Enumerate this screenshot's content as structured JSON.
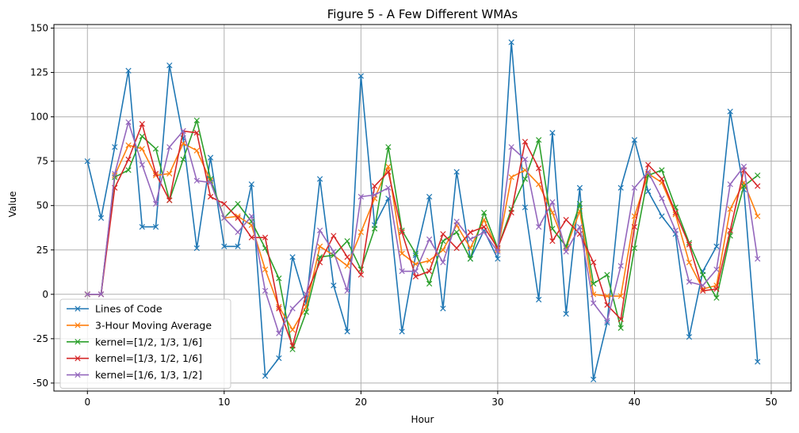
{
  "chart_data": {
    "type": "line",
    "title": "Figure 5 - A Few Different WMAs",
    "xlabel": "Hour",
    "ylabel": "Value",
    "xlim": [
      -2.45,
      51.45
    ],
    "ylim": [
      -54.5,
      152
    ],
    "xticks": [
      0,
      10,
      20,
      30,
      40,
      50
    ],
    "yticks": [
      -50,
      -25,
      0,
      25,
      50,
      75,
      100,
      125,
      150
    ],
    "grid": true,
    "legend_position": "lower left",
    "marker": "x",
    "x": [
      0,
      1,
      2,
      3,
      4,
      5,
      6,
      7,
      8,
      9,
      10,
      11,
      12,
      13,
      14,
      15,
      16,
      17,
      18,
      19,
      20,
      21,
      22,
      23,
      24,
      25,
      26,
      27,
      28,
      29,
      30,
      31,
      32,
      33,
      34,
      35,
      36,
      37,
      38,
      39,
      40,
      41,
      42,
      43,
      44,
      45,
      46,
      47,
      48,
      49
    ],
    "series": [
      {
        "name": "Lines of Code",
        "color": "#1f77b4",
        "values": [
          75,
          43,
          83,
          126,
          38,
          38,
          129,
          88,
          26,
          77,
          27,
          27,
          62,
          -46,
          -36,
          21,
          -5,
          65,
          5,
          -21,
          123,
          39,
          54,
          -21,
          22,
          55,
          -8,
          69,
          20,
          36,
          20,
          142,
          49,
          -3,
          91,
          -11,
          60,
          -48,
          -16,
          60,
          87,
          58,
          44,
          34,
          -24,
          13,
          27,
          103,
          59,
          -38
        ]
      },
      {
        "name": "3-Hour Moving Average",
        "color": "#ff7f0e",
        "values": [
          0,
          0,
          67,
          84,
          82,
          67,
          68,
          85,
          81,
          64,
          43,
          44,
          39,
          14,
          -7,
          -20,
          -7,
          27,
          22,
          16,
          35,
          54,
          72,
          23,
          17,
          19,
          25,
          39,
          26,
          42,
          25,
          66,
          70,
          62,
          46,
          26,
          47,
          0,
          -1,
          -1,
          44,
          68,
          63,
          45,
          18,
          3,
          5,
          48,
          63,
          44
        ]
      },
      {
        "name": "kernel=[1/2, 1/3, 1/6]",
        "color": "#2ca02c",
        "values": [
          0,
          0,
          66,
          70,
          89,
          82,
          53,
          76,
          98,
          65,
          43,
          51,
          41,
          26,
          9,
          -31,
          -10,
          21,
          22,
          30,
          14,
          37,
          83,
          36,
          23,
          6,
          30,
          35,
          20,
          46,
          26,
          48,
          65,
          87,
          37,
          27,
          51,
          6,
          11,
          -19,
          26,
          67,
          70,
          49,
          29,
          11,
          -2,
          33,
          61,
          67
        ]
      },
      {
        "name": "kernel=[1/3, 1/2, 1/6]",
        "color": "#d62728",
        "values": [
          0,
          0,
          60,
          76,
          96,
          68,
          53,
          92,
          91,
          55,
          51,
          43,
          32,
          32,
          -8,
          -29,
          0,
          18,
          33,
          21,
          11,
          61,
          69,
          35,
          10,
          13,
          34,
          26,
          35,
          38,
          26,
          46,
          86,
          71,
          30,
          42,
          34,
          18,
          -6,
          -14,
          38,
          73,
          65,
          46,
          28,
          2,
          3,
          36,
          70,
          61
        ]
      },
      {
        "name": "kernel=[1/6, 1/3, 1/2]",
        "color": "#9467bd",
        "values": [
          0,
          0,
          68,
          97,
          73,
          51,
          83,
          92,
          64,
          63,
          43,
          35,
          44,
          2,
          -22,
          -8,
          0,
          36,
          24,
          2,
          55,
          56,
          60,
          13,
          13,
          31,
          18,
          41,
          31,
          35,
          24,
          83,
          76,
          38,
          52,
          24,
          38,
          -5,
          -15,
          16,
          60,
          69,
          54,
          36,
          7,
          5,
          14,
          62,
          72,
          20
        ]
      }
    ]
  }
}
